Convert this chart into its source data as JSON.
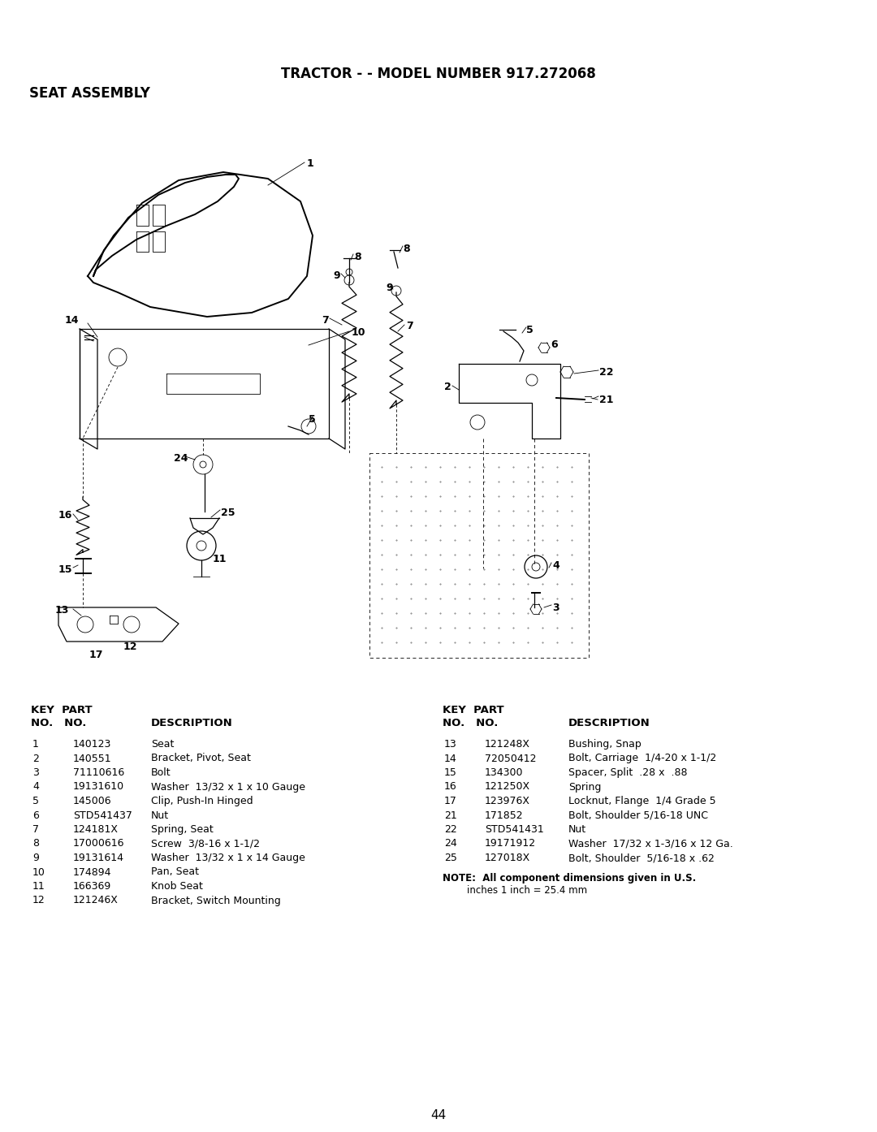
{
  "title": "TRACTOR - - MODEL NUMBER 917.272068",
  "subtitle": "SEAT ASSEMBLY",
  "page_number": "44",
  "background_color": "#ffffff",
  "text_color": "#000000",
  "left_parts": [
    [
      "1",
      "140123",
      "Seat"
    ],
    [
      "2",
      "140551",
      "Bracket, Pivot, Seat"
    ],
    [
      "3",
      "71110616",
      "Bolt"
    ],
    [
      "4",
      "19131610",
      "Washer  13/32 x 1 x 10 Gauge"
    ],
    [
      "5",
      "145006",
      "Clip, Push-In Hinged"
    ],
    [
      "6",
      "STD541437",
      "Nut"
    ],
    [
      "7",
      "124181X",
      "Spring, Seat"
    ],
    [
      "8",
      "17000616",
      "Screw  3/8-16 x 1-1/2"
    ],
    [
      "9",
      "19131614",
      "Washer  13/32 x 1 x 14 Gauge"
    ],
    [
      "10",
      "174894",
      "Pan, Seat"
    ],
    [
      "11",
      "166369",
      "Knob Seat"
    ],
    [
      "12",
      "121246X",
      "Bracket, Switch Mounting"
    ]
  ],
  "right_parts": [
    [
      "13",
      "121248X",
      "Bushing, Snap"
    ],
    [
      "14",
      "72050412",
      "Bolt, Carriage  1/4-20 x 1-1/2"
    ],
    [
      "15",
      "134300",
      "Spacer, Split  .28 x  .88"
    ],
    [
      "16",
      "121250X",
      "Spring"
    ],
    [
      "17",
      "123976X",
      "Locknut, Flange  1/4 Grade 5"
    ],
    [
      "21",
      "171852",
      "Bolt, Shoulder 5/16-18 UNC"
    ],
    [
      "22",
      "STD541431",
      "Nut"
    ],
    [
      "24",
      "19171912",
      "Washer  17/32 x 1-3/16 x 12 Ga."
    ],
    [
      "25",
      "127018X",
      "Bolt, Shoulder  5/16-18 x .62"
    ]
  ],
  "note_line1": "NOTE:  All component dimensions given in U.S.",
  "note_line2": "        inches 1 inch = 25.4 mm"
}
